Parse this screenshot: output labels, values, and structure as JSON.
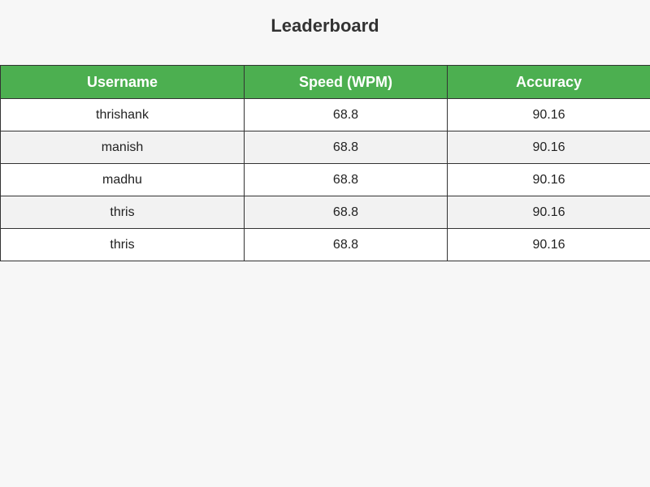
{
  "page": {
    "title": "Leaderboard"
  },
  "colors": {
    "header_bg": "#4caf50",
    "header_text": "#ffffff",
    "page_bg": "#f7f7f7",
    "row_alt_bg": "#f2f2f2"
  },
  "table": {
    "headers": [
      "Username",
      "Speed (WPM)",
      "Accuracy"
    ],
    "rows": [
      {
        "username": "thrishank",
        "speed": "68.8",
        "accuracy": "90.16"
      },
      {
        "username": "manish",
        "speed": "68.8",
        "accuracy": "90.16"
      },
      {
        "username": "madhu",
        "speed": "68.8",
        "accuracy": "90.16"
      },
      {
        "username": "thris",
        "speed": "68.8",
        "accuracy": "90.16"
      },
      {
        "username": "thris",
        "speed": "68.8",
        "accuracy": "90.16"
      }
    ]
  }
}
